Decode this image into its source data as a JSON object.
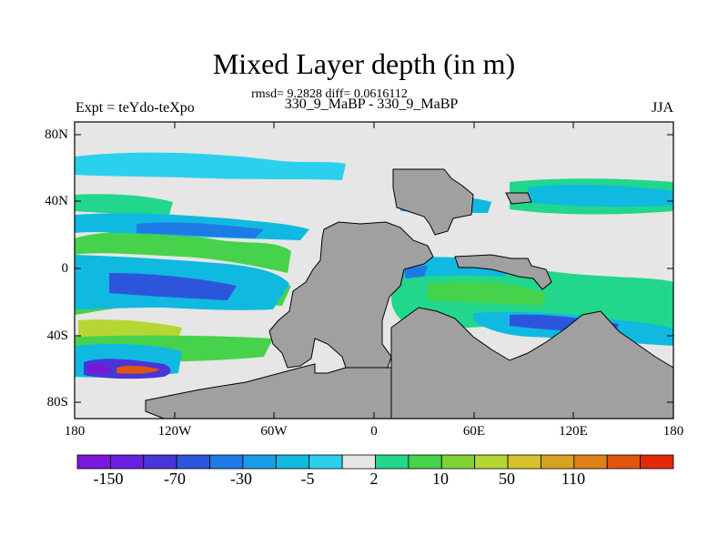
{
  "title": "Mixed Layer depth (in m)",
  "stats": "rmsd= 9.2828 diff= 0.0616112",
  "expt_label": "Expt = teYdo-teXpo",
  "diff_label": "330_9_MaBP - 330_9_MaBP",
  "season": "JJA",
  "lat_labels": [
    "80N",
    "40N",
    "0",
    "40S",
    "80S"
  ],
  "lon_labels": [
    "180",
    "120W",
    "60W",
    "0",
    "60E",
    "120E",
    "180"
  ],
  "colorbar": {
    "labels": [
      "-150",
      "-70",
      "-30",
      "-5",
      "2",
      "10",
      "50",
      "110"
    ],
    "colors": [
      "#7a17d9",
      "#6a1fe0",
      "#4a35d8",
      "#2d55dc",
      "#1e7be6",
      "#1a9de8",
      "#10b9e0",
      "#2bd0ec",
      "#e6e6e6",
      "#22d68c",
      "#46d24a",
      "#7fd236",
      "#b6d633",
      "#d6c22b",
      "#d8a11f",
      "#e0801a",
      "#e0560f",
      "#e02a0a"
    ],
    "land_color": "#a0a0a0",
    "missing_color": "#e6e6e6"
  },
  "chart_data": {
    "type": "heatmap",
    "title": "Mixed Layer depth (in m)",
    "xlabel": "",
    "ylabel": "",
    "x_ticks": [
      "180",
      "120W",
      "60W",
      "0",
      "60E",
      "120E",
      "180"
    ],
    "y_ticks": [
      "80N",
      "40N",
      "0",
      "40S",
      "80S"
    ],
    "xlim": [
      -180,
      180
    ],
    "ylim": [
      -90,
      90
    ],
    "projection": "cylindrical equidistant",
    "levels": [
      -150,
      -70,
      -30,
      -5,
      2,
      10,
      50,
      110
    ],
    "features": [
      {
        "name": "deep negative anomaly",
        "lon": -150,
        "lat": -63,
        "value": -150
      },
      {
        "name": "positive anomaly",
        "lon": -140,
        "lat": -64,
        "value": 110
      }
    ]
  }
}
